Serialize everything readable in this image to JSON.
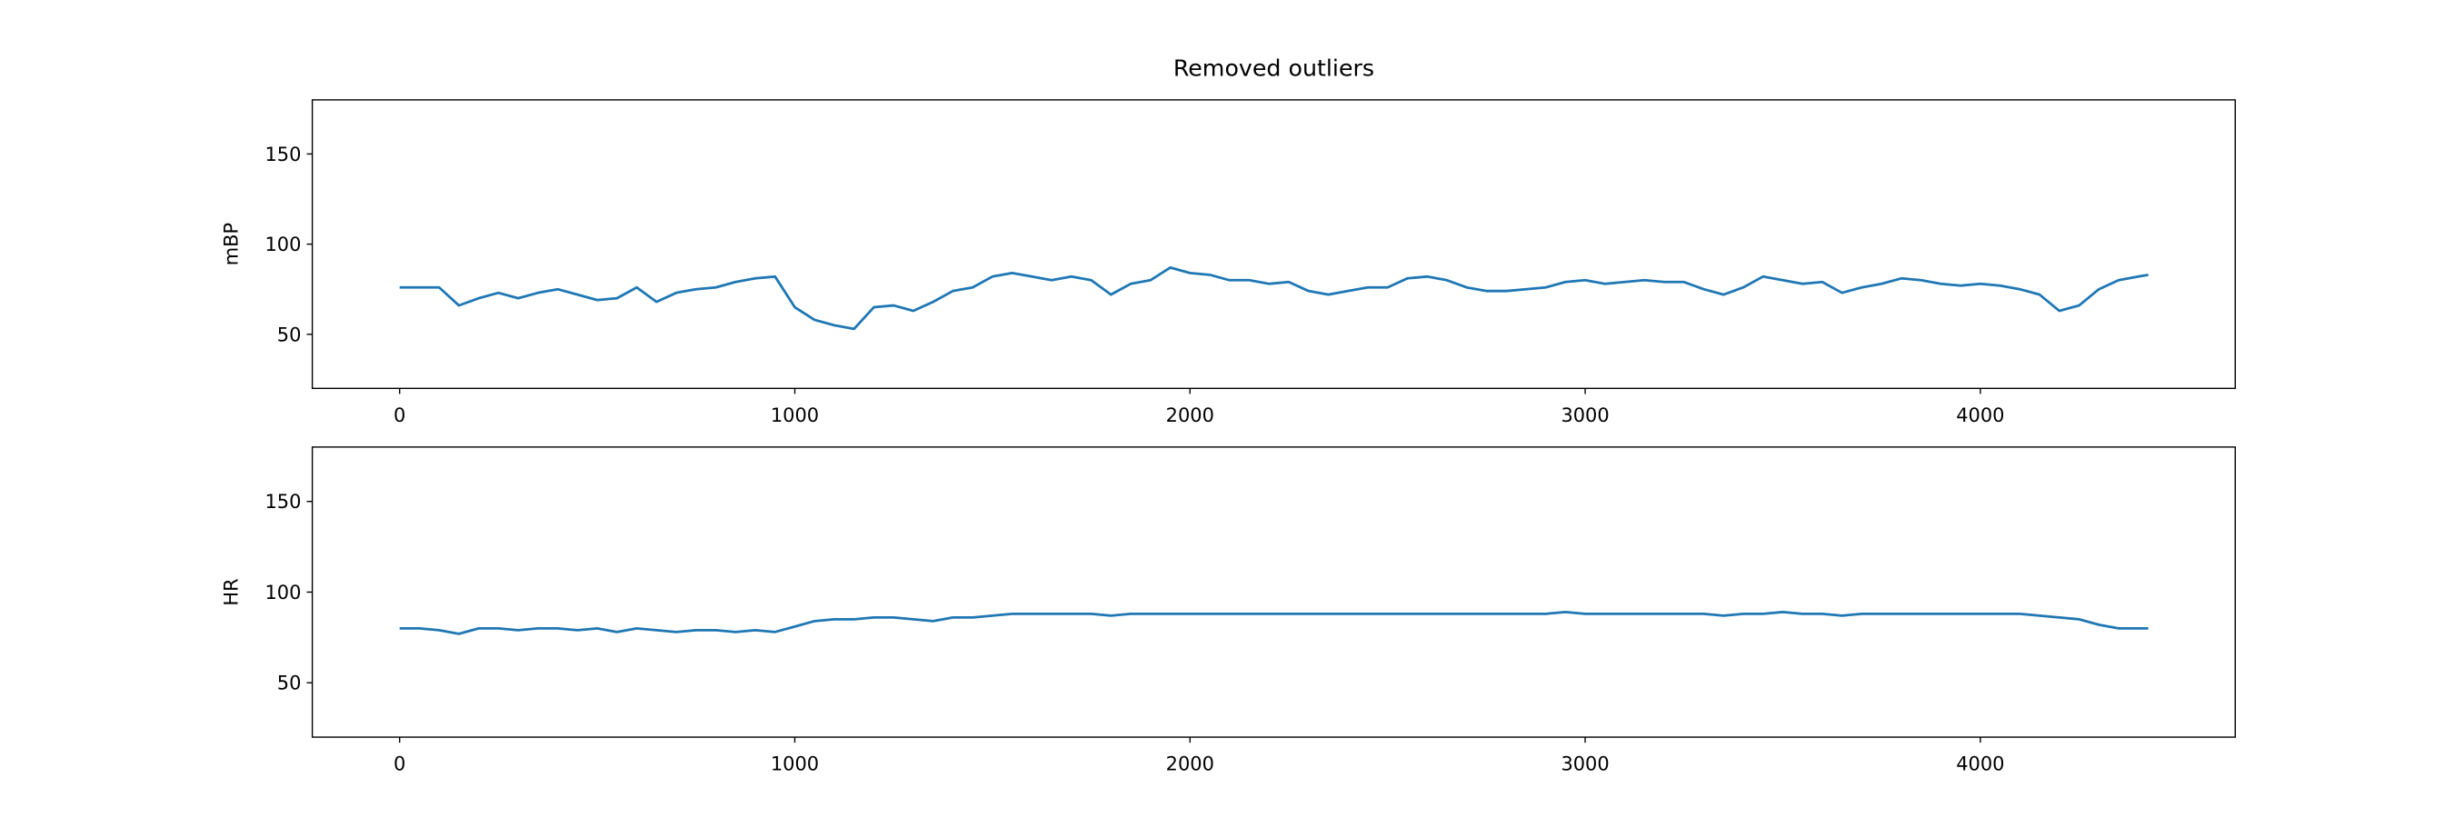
{
  "chart_data": [
    {
      "type": "line",
      "title": "Removed outliers",
      "y_label": "mBP",
      "x": [
        0,
        50,
        100,
        150,
        200,
        250,
        300,
        350,
        400,
        450,
        500,
        550,
        600,
        650,
        700,
        750,
        800,
        850,
        900,
        950,
        1000,
        1050,
        1100,
        1150,
        1200,
        1250,
        1300,
        1350,
        1400,
        1450,
        1500,
        1550,
        1600,
        1650,
        1700,
        1750,
        1800,
        1850,
        1900,
        1950,
        2000,
        2050,
        2100,
        2150,
        2200,
        2250,
        2300,
        2350,
        2400,
        2450,
        2500,
        2550,
        2600,
        2650,
        2700,
        2750,
        2800,
        2850,
        2900,
        2950,
        3000,
        3050,
        3100,
        3150,
        3200,
        3250,
        3300,
        3350,
        3400,
        3450,
        3500,
        3550,
        3600,
        3650,
        3700,
        3750,
        3800,
        3850,
        3900,
        3950,
        4000,
        4050,
        4100,
        4150,
        4200,
        4250,
        4300,
        4350,
        4400,
        4425
      ],
      "series": [
        {
          "color": "#1f77b4",
          "values": [
            76,
            76,
            76,
            66,
            70,
            73,
            70,
            73,
            75,
            72,
            69,
            70,
            76,
            68,
            73,
            75,
            76,
            79,
            81,
            82,
            65,
            58,
            55,
            53,
            65,
            66,
            63,
            68,
            74,
            76,
            82,
            84,
            82,
            80,
            82,
            80,
            72,
            78,
            80,
            87,
            84,
            83,
            80,
            80,
            78,
            79,
            74,
            72,
            74,
            76,
            76,
            81,
            82,
            80,
            76,
            74,
            74,
            75,
            76,
            79,
            80,
            78,
            79,
            80,
            79,
            79,
            75,
            72,
            76,
            82,
            80,
            78,
            79,
            73,
            76,
            78,
            81,
            80,
            78,
            77,
            78,
            77,
            75,
            72,
            63,
            66,
            75,
            80,
            82,
            83
          ]
        }
      ],
      "xlim": [
        -221,
        4645
      ],
      "ylim": [
        20,
        180
      ],
      "xticks": [
        0,
        1000,
        2000,
        3000,
        4000
      ],
      "yticks": [
        50,
        100,
        150
      ]
    },
    {
      "type": "line",
      "y_label": "HR",
      "x": [
        0,
        50,
        100,
        150,
        200,
        250,
        300,
        350,
        400,
        450,
        500,
        550,
        600,
        650,
        700,
        750,
        800,
        850,
        900,
        950,
        1000,
        1050,
        1100,
        1150,
        1200,
        1250,
        1300,
        1350,
        1400,
        1450,
        1500,
        1550,
        1600,
        1650,
        1700,
        1750,
        1800,
        1850,
        1900,
        1950,
        2000,
        2050,
        2100,
        2150,
        2200,
        2250,
        2300,
        2350,
        2400,
        2450,
        2500,
        2550,
        2600,
        2650,
        2700,
        2750,
        2800,
        2850,
        2900,
        2950,
        3000,
        3050,
        3100,
        3150,
        3200,
        3250,
        3300,
        3350,
        3400,
        3450,
        3500,
        3550,
        3600,
        3650,
        3700,
        3750,
        3800,
        3850,
        3900,
        3950,
        4000,
        4050,
        4100,
        4150,
        4200,
        4250,
        4300,
        4350,
        4400,
        4425
      ],
      "series": [
        {
          "color": "#1f77b4",
          "values": [
            80,
            80,
            79,
            77,
            80,
            80,
            79,
            80,
            80,
            79,
            80,
            78,
            80,
            79,
            78,
            79,
            79,
            78,
            79,
            78,
            81,
            84,
            85,
            85,
            86,
            86,
            85,
            84,
            86,
            86,
            87,
            88,
            88,
            88,
            88,
            88,
            87,
            88,
            88,
            88,
            88,
            88,
            88,
            88,
            88,
            88,
            88,
            88,
            88,
            88,
            88,
            88,
            88,
            88,
            88,
            88,
            88,
            88,
            88,
            89,
            88,
            88,
            88,
            88,
            88,
            88,
            88,
            87,
            88,
            88,
            89,
            88,
            88,
            87,
            88,
            88,
            88,
            88,
            88,
            88,
            88,
            88,
            88,
            87,
            86,
            85,
            82,
            80,
            80,
            80
          ]
        }
      ],
      "xlim": [
        -221,
        4645
      ],
      "ylim": [
        20,
        180
      ],
      "xticks": [
        0,
        1000,
        2000,
        3000,
        4000
      ],
      "yticks": [
        50,
        100,
        150
      ]
    }
  ]
}
